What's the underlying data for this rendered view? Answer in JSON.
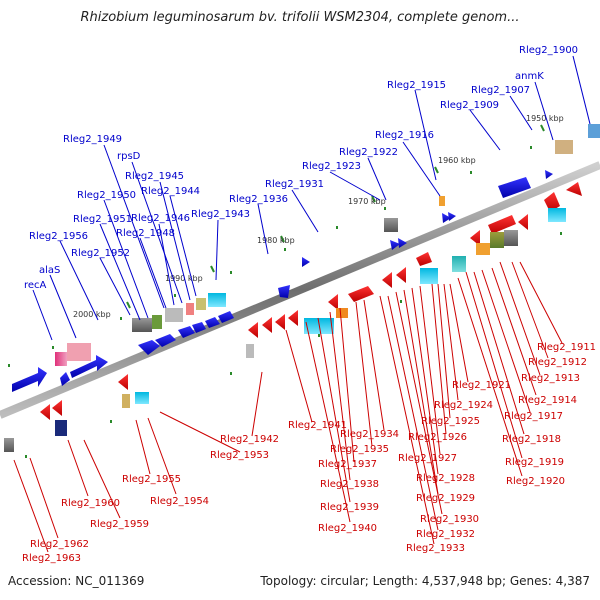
{
  "title": "Rhizobium leguminosarum bv. trifolii WSM2304, complete genom...",
  "footer": {
    "accession": "Accession: NC_011369",
    "summary": "Topology: circular; Length: 4,537,948 bp; Genes: 4,387"
  },
  "colors": {
    "forward_label": "#0000cc",
    "reverse_label": "#cc0000",
    "forward_gene": "#0000ee",
    "reverse_gene": "#ee0000",
    "backbone": "#888888",
    "tick": "#2a8a2a"
  },
  "kbp_ticks": [
    "1950 kbp",
    "1960 kbp",
    "1970 kbp",
    "1980 kbp",
    "1990 kbp",
    "2000 kbp"
  ],
  "forward_labels": [
    "Rleg2_1900",
    "anmK",
    "Rleg2_1907",
    "Rleg2_1909",
    "Rleg2_1915",
    "Rleg2_1916",
    "Rleg2_1922",
    "Rleg2_1923",
    "Rleg2_1931",
    "Rleg2_1936",
    "Rleg2_1943",
    "Rleg2_1944",
    "Rleg2_1945",
    "rpsD",
    "Rleg2_1946",
    "Rleg2_1948",
    "Rleg2_1949",
    "Rleg2_1950",
    "Rleg2_1951",
    "Rleg2_1952",
    "Rleg2_1956",
    "alaS",
    "recA"
  ],
  "reverse_labels": [
    "Rleg2_1911",
    "Rleg2_1912",
    "Rleg2_1913",
    "Rleg2_1914",
    "Rleg2_1917",
    "Rleg2_1918",
    "Rleg2_1919",
    "Rleg2_1920",
    "Rleg2_1921",
    "Rleg2_1924",
    "Rleg2_1925",
    "Rleg2_1926",
    "Rleg2_1927",
    "Rleg2_1928",
    "Rleg2_1929",
    "Rleg2_1930",
    "Rleg2_1932",
    "Rleg2_1933",
    "Rleg2_1934",
    "Rleg2_1935",
    "Rleg2_1937",
    "Rleg2_1938",
    "Rleg2_1939",
    "Rleg2_1940",
    "Rleg2_1941",
    "Rleg2_1942",
    "Rleg2_1953",
    "Rleg2_1954",
    "Rleg2_1955",
    "Rleg2_1959",
    "Rleg2_1960",
    "Rleg2_1962",
    "Rleg2_1963"
  ]
}
